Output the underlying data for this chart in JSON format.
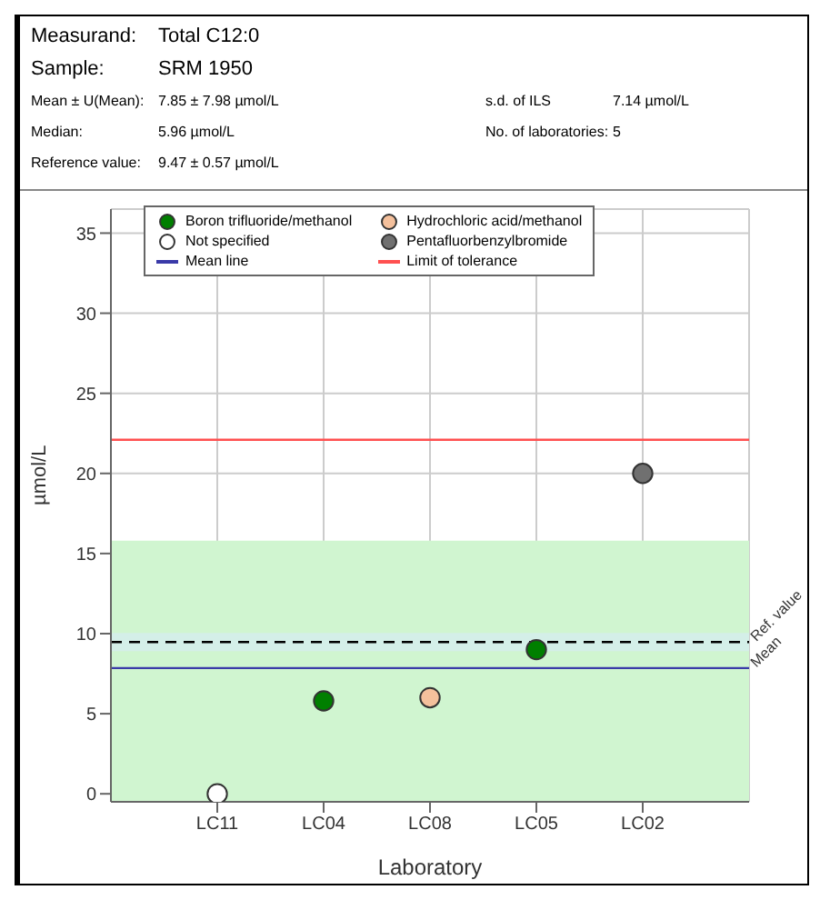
{
  "chart_data": {
    "type": "scatter",
    "title": "Measurand:\tTotal C12:0",
    "subtitle": "Sample:\tSRM 1950",
    "annotations": [
      "Mean ± U(Mean):\t7.85 ± 7.98 µmol/L",
      "s.d. of ILS\t7.14 µmol/L",
      "Median:\t5.96 µmol/L",
      "No. of laboratories:\t5",
      "Reference value:\t9.47 ± 0.57 µmol/L",
      "Ref. value",
      "Mean"
    ],
    "xlabel": "Laboratory",
    "ylabel": "µmol/L",
    "categories": [
      "LC11",
      "LC04",
      "LC08",
      "LC05",
      "LC02"
    ],
    "series": [
      {
        "name": "Boron trifluoride/methanol",
        "color": "#007f00",
        "values": [
          null,
          5.8,
          null,
          9.0,
          null
        ]
      },
      {
        "name": "Hydrochloric acid/methanol",
        "color": "#f4c09c",
        "values": [
          null,
          null,
          6.0,
          null,
          null
        ]
      },
      {
        "name": "Not specified",
        "color": "#ffffff",
        "values": [
          0,
          null,
          null,
          null,
          null
        ]
      },
      {
        "name": "Pentafluorbenzylbromide",
        "color": "#707070",
        "values": [
          null,
          null,
          null,
          null,
          20.0
        ]
      }
    ],
    "ylim": [
      -0.5,
      36.5
    ],
    "yticks": [
      0,
      5,
      10,
      15,
      20,
      25,
      30,
      35
    ],
    "bands": [
      {
        "axis": "y",
        "from": -0.5,
        "to": 15.8,
        "color": "#d0f5d0"
      },
      {
        "axis": "y",
        "from": 8.9,
        "to": 10.04,
        "color": "#d4efe8"
      }
    ],
    "ref_lines": [
      {
        "axis": "y",
        "value": 9.47,
        "color": "#000000",
        "line_style": "dashed"
      },
      {
        "axis": "y",
        "value": 7.85,
        "label": "Mean line",
        "color": "#3a3aa8"
      },
      {
        "axis": "y",
        "value": 22.1,
        "label": "Limit of tolerance",
        "color": "#ff5050"
      }
    ],
    "grid": true,
    "legend": "top left",
    "marker": "circle"
  }
}
